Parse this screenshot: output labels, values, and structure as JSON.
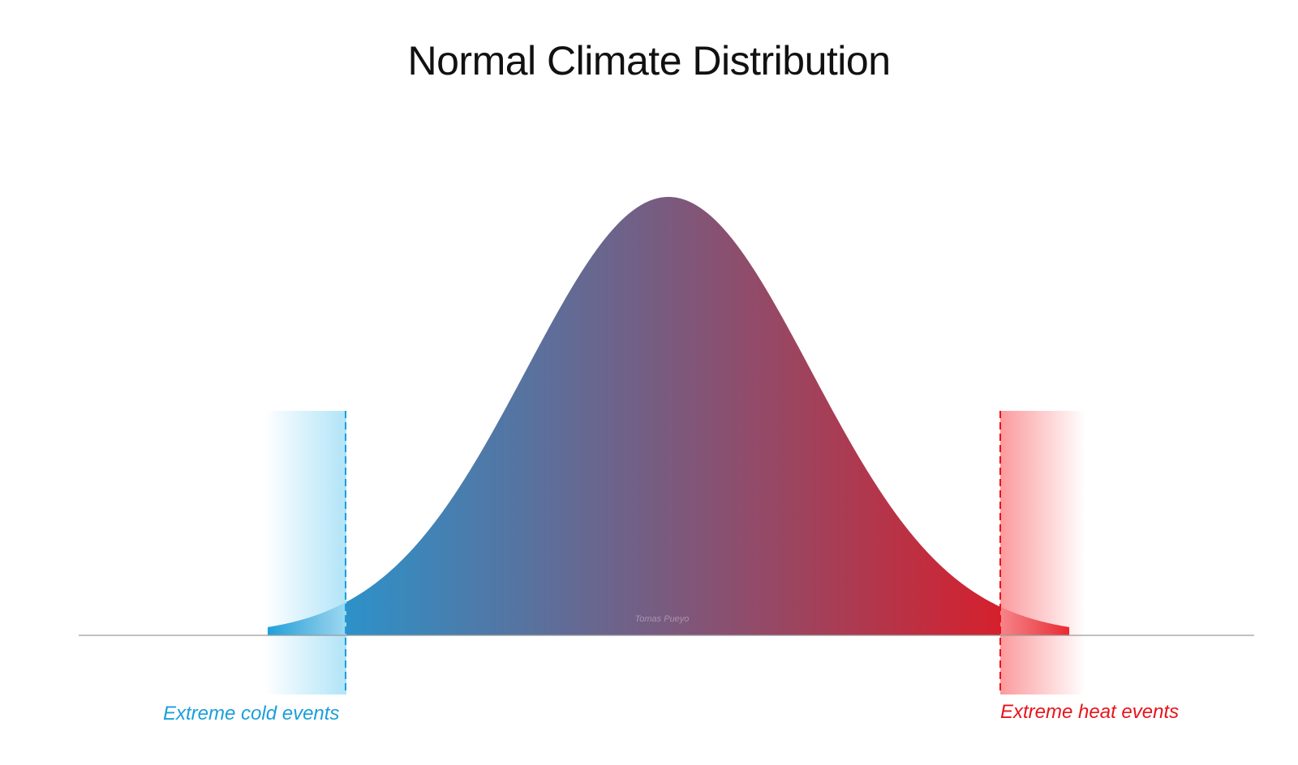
{
  "title": "Normal Climate Distribution",
  "labels": {
    "cold": "Extreme cold events",
    "heat": "Extreme heat events"
  },
  "watermark": "Tomas Pueyo",
  "colors": {
    "cold": "#1a9fdb",
    "cold_band": "#a8e1f7",
    "heat": "#e8141c",
    "heat_band": "#fb8f92",
    "mid": "#7a5a7e",
    "axis": "#9a9a9a"
  }
}
